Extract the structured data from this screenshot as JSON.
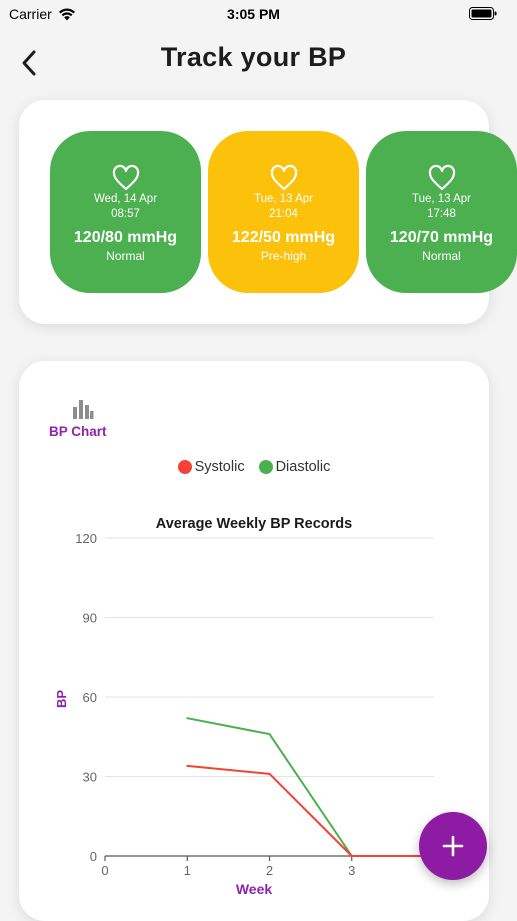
{
  "status_bar": {
    "carrier": "Carrier",
    "time": "3:05 PM"
  },
  "header": {
    "title": "Track your BP"
  },
  "readings": [
    {
      "date": "Wed, 14 Apr",
      "time": "08:57",
      "value": "120/80 mmHg",
      "status": "Normal",
      "color": "#4caf50"
    },
    {
      "date": "Tue, 13 Apr",
      "time": "21:04",
      "value": "122/50 mmHg",
      "status": "Pre-high",
      "color": "#fbc10b"
    },
    {
      "date": "Tue, 13 Apr",
      "time": "17:48",
      "value": "120/70 mmHg",
      "status": "Normal",
      "color": "#4caf50"
    }
  ],
  "chart_tab": {
    "label": "BP Chart",
    "icon": "bar-chart-icon"
  },
  "legend": [
    {
      "label": "Systolic",
      "color": "#f44336"
    },
    {
      "label": "Diastolic",
      "color": "#4caf50"
    }
  ],
  "chart_data": {
    "type": "line",
    "title": "Average Weekly BP Records",
    "xlabel": "Week",
    "ylabel": "BP",
    "x": [
      0,
      1,
      2,
      3,
      4
    ],
    "xticks": [
      "0",
      "1",
      "2",
      "3"
    ],
    "yticks": [
      "0",
      "30",
      "60",
      "90",
      "120"
    ],
    "ylim": [
      0,
      120
    ],
    "xlim": [
      0,
      4
    ],
    "grid": true,
    "series": [
      {
        "name": "Systolic",
        "color": "#f44336",
        "points": [
          [
            1,
            34
          ],
          [
            2,
            31
          ],
          [
            3,
            0
          ],
          [
            4,
            0
          ]
        ]
      },
      {
        "name": "Diastolic",
        "color": "#4caf50",
        "points": [
          [
            1,
            52
          ],
          [
            2,
            46
          ],
          [
            3,
            0
          ],
          [
            4,
            0
          ]
        ]
      }
    ]
  },
  "fab": {
    "icon": "plus-icon",
    "color": "#8e1ba3"
  },
  "colors": {
    "accent": "#8e24aa",
    "normal": "#4caf50",
    "pre_high": "#fbc10b"
  }
}
